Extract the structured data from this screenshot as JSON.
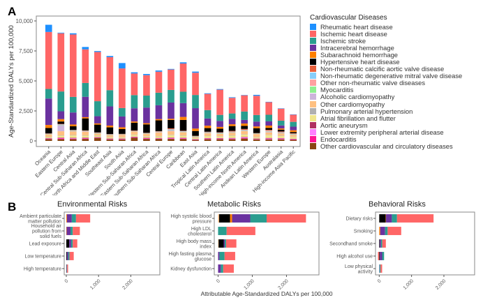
{
  "panel_labels": {
    "a": "A",
    "b": "B"
  },
  "chart_data": [
    {
      "type": "bar",
      "stacked": true,
      "panel": "A",
      "title": "",
      "xlabel": "",
      "ylabel": "Age-Standardized DALYs per 100,000",
      "ylim": [
        0,
        10000
      ],
      "yticks": [
        0,
        2500,
        5000,
        7500,
        10000
      ],
      "ytick_labels": [
        "0",
        "2,500",
        "5,000",
        "7,500",
        "10,000"
      ],
      "legend_title": "Cardiovascular Diseases",
      "legend_position": "right",
      "categories": [
        "Oceania",
        "Eastern Europe",
        "Central Asia",
        "Central Sub-Saharan Africa",
        "North Africa and Middle East",
        "Southeast Asia",
        "South Asia",
        "Western Sub-Saharan Africa",
        "Eastern Sub-Saharan Africa",
        "Southern Sub-Saharan Africa",
        "Central Europe",
        "Caribbean",
        "East Asia",
        "Tropical Latin America",
        "Central Latin America",
        "Southern Latin America",
        "High-income North America",
        "Andean Latin America",
        "Western Europe",
        "Australasia",
        "High-income Asia Pacific"
      ],
      "series": [
        {
          "name": "Other cardiovascular and circulatory diseases",
          "color": "#8B4513",
          "values": [
            150,
            150,
            150,
            170,
            260,
            130,
            130,
            270,
            170,
            170,
            170,
            170,
            90,
            140,
            140,
            140,
            200,
            130,
            130,
            130,
            90
          ]
        },
        {
          "name": "Endocarditis",
          "color": "#FF1493",
          "values": [
            30,
            60,
            40,
            40,
            20,
            20,
            20,
            30,
            40,
            30,
            30,
            40,
            20,
            30,
            30,
            30,
            30,
            30,
            30,
            30,
            20
          ]
        },
        {
          "name": "Lower extremity peripheral arterial disease",
          "color": "#FF80FF",
          "values": [
            20,
            30,
            30,
            20,
            20,
            20,
            20,
            20,
            20,
            20,
            40,
            30,
            20,
            30,
            30,
            40,
            60,
            20,
            40,
            40,
            30
          ]
        },
        {
          "name": "Aortic aneurysm",
          "color": "#B03060",
          "values": [
            30,
            40,
            40,
            40,
            30,
            30,
            30,
            30,
            30,
            30,
            40,
            30,
            30,
            40,
            40,
            40,
            40,
            20,
            50,
            40,
            40
          ]
        },
        {
          "name": "Atrial fibrillation and flutter",
          "color": "#F0E68C",
          "values": [
            100,
            150,
            200,
            170,
            100,
            100,
            80,
            150,
            100,
            130,
            200,
            170,
            90,
            160,
            120,
            190,
            200,
            100,
            230,
            180,
            160
          ]
        },
        {
          "name": "Pulmonary arterial hypertension",
          "color": "#B0B0B0",
          "values": [
            20,
            30,
            30,
            30,
            30,
            30,
            30,
            30,
            30,
            30,
            30,
            30,
            20,
            30,
            30,
            30,
            30,
            30,
            30,
            20,
            20
          ]
        },
        {
          "name": "Other cardiomyopathy",
          "color": "#FFC080",
          "values": [
            200,
            350,
            300,
            300,
            150,
            150,
            200,
            250,
            200,
            300,
            300,
            250,
            80,
            200,
            200,
            200,
            250,
            250,
            200,
            180,
            160
          ]
        },
        {
          "name": "Alcoholic cardiomyopathy",
          "color": "#CDB4DB",
          "values": [
            20,
            500,
            30,
            50,
            20,
            20,
            20,
            30,
            30,
            50,
            100,
            30,
            20,
            30,
            30,
            30,
            30,
            20,
            60,
            20,
            10
          ]
        },
        {
          "name": "Myocarditis",
          "color": "#90EE90",
          "values": [
            20,
            30,
            20,
            20,
            20,
            20,
            20,
            20,
            20,
            20,
            20,
            20,
            10,
            20,
            20,
            20,
            20,
            20,
            20,
            20,
            20
          ]
        },
        {
          "name": "Other non-rheumatic valve diseases",
          "color": "#FFA0A0",
          "values": [
            20,
            30,
            30,
            20,
            30,
            30,
            20,
            20,
            20,
            20,
            40,
            30,
            20,
            30,
            30,
            40,
            40,
            20,
            40,
            40,
            30
          ]
        },
        {
          "name": "Non-rheumatic degenerative mitral valve disease",
          "color": "#87CEFA",
          "values": [
            10,
            20,
            20,
            10,
            10,
            10,
            10,
            10,
            10,
            10,
            20,
            20,
            10,
            20,
            20,
            20,
            30,
            10,
            30,
            30,
            20
          ]
        },
        {
          "name": "Non-rheumatic calcific aortic valve disease",
          "color": "#E8603C",
          "values": [
            10,
            30,
            30,
            10,
            20,
            20,
            10,
            10,
            10,
            10,
            60,
            30,
            20,
            40,
            30,
            60,
            70,
            10,
            70,
            60,
            40
          ]
        },
        {
          "name": "Hypertensive heart disease",
          "color": "#000000",
          "values": [
            450,
            200,
            300,
            1000,
            650,
            550,
            400,
            650,
            700,
            900,
            700,
            900,
            400,
            300,
            300,
            400,
            250,
            400,
            150,
            150,
            100
          ]
        },
        {
          "name": "Subarachnoid hemorrhage",
          "color": "#FF8000",
          "values": [
            250,
            200,
            150,
            100,
            100,
            150,
            150,
            100,
            100,
            100,
            100,
            250,
            200,
            200,
            150,
            150,
            200,
            150,
            200,
            100,
            150
          ]
        },
        {
          "name": "Intracerebral hemorrhage",
          "color": "#6A329F",
          "values": [
            2200,
            650,
            1000,
            1700,
            600,
            1600,
            900,
            1100,
            1300,
            1150,
            1350,
            1150,
            1700,
            600,
            500,
            450,
            300,
            400,
            350,
            250,
            300
          ]
        },
        {
          "name": "Ischemic stroke",
          "color": "#2A9D8F",
          "values": [
            800,
            1650,
            1300,
            1150,
            1250,
            1350,
            700,
            1100,
            1000,
            1050,
            1050,
            950,
            1100,
            700,
            500,
            450,
            700,
            550,
            550,
            400,
            400
          ]
        },
        {
          "name": "Ischemic heart disease",
          "color": "#FF6666",
          "values": [
            4750,
            4850,
            5200,
            2800,
            4100,
            2750,
            3300,
            1800,
            1700,
            1750,
            1700,
            2350,
            1850,
            1350,
            2100,
            1300,
            1350,
            1600,
            1050,
            1000,
            600
          ]
        },
        {
          "name": "Rheumatic heart disease",
          "color": "#1E90FF",
          "values": [
            600,
            50,
            100,
            200,
            80,
            100,
            450,
            100,
            100,
            100,
            50,
            100,
            100,
            50,
            50,
            50,
            30,
            80,
            30,
            30,
            20
          ]
        }
      ]
    },
    {
      "type": "bar",
      "orientation": "horizontal",
      "stacked": true,
      "panel": "B",
      "title": "Environmental Risks",
      "xlabel": "",
      "xlim": [
        0,
        2900
      ],
      "xticks": [
        0,
        1000,
        2000
      ],
      "xtick_labels": [
        "0",
        "1,000",
        "2,000"
      ],
      "categories": [
        "Ambient particulate matter pollution",
        "Household air pollution from solid fuels",
        "Lead exposure",
        "Low temperature",
        "High temperature"
      ],
      "series": [
        {
          "name": "Subarachnoid hemorrhage",
          "color": "#FF8000",
          "values": [
            20,
            10,
            0,
            0,
            0
          ]
        },
        {
          "name": "Hypertensive heart disease",
          "color": "#000000",
          "values": [
            0,
            0,
            90,
            20,
            5
          ]
        },
        {
          "name": "Intracerebral hemorrhage",
          "color": "#6A329F",
          "values": [
            150,
            120,
            60,
            40,
            10
          ]
        },
        {
          "name": "Ischemic stroke",
          "color": "#2A9D8F",
          "values": [
            130,
            70,
            50,
            40,
            10
          ]
        },
        {
          "name": "Ischemic heart disease",
          "color": "#FF6666",
          "values": [
            440,
            220,
            140,
            130,
            30
          ]
        }
      ]
    },
    {
      "type": "bar",
      "orientation": "horizontal",
      "stacked": true,
      "panel": "B",
      "title": "Metabolic Risks",
      "xlabel": "Attributable Age-Standardized DALYs per 100,000",
      "xlim": [
        -50,
        2950
      ],
      "xticks": [
        0,
        1000,
        2000
      ],
      "xtick_labels": [
        "0",
        "1,000",
        "2,000"
      ],
      "categories": [
        "High systolic blood pressure",
        "High LDL cholesterol",
        "High body mass index",
        "High fasting plasma glucose",
        "Kidney dysfunction"
      ],
      "series": [
        {
          "name": "Other cardiomyopathy",
          "color": "#FFC080",
          "values": [
            30,
            0,
            15,
            0,
            0
          ]
        },
        {
          "name": "Hypertensive heart disease",
          "color": "#000000",
          "values": [
            320,
            0,
            150,
            0,
            0
          ]
        },
        {
          "name": "Subarachnoid hemorrhage",
          "color": "#FF8000",
          "values": [
            60,
            0,
            0,
            0,
            0
          ]
        },
        {
          "name": "Intracerebral hemorrhage",
          "color": "#6A329F",
          "values": [
            530,
            0,
            30,
            40,
            80
          ]
        },
        {
          "name": "Ischemic stroke",
          "color": "#2A9D8F",
          "values": [
            480,
            250,
            40,
            150,
            70
          ]
        },
        {
          "name": "Ischemic heart disease",
          "color": "#FF6666",
          "values": [
            1150,
            840,
            300,
            310,
            310
          ]
        }
      ]
    },
    {
      "type": "bar",
      "orientation": "horizontal",
      "stacked": true,
      "panel": "B",
      "title": "Behavioral Risks",
      "xlabel": "",
      "xlim": [
        -50,
        2950
      ],
      "xticks": [
        0,
        1000,
        2000
      ],
      "xtick_labels": [
        "0",
        "1,000",
        "2,000"
      ],
      "categories": [
        "Dietary risks",
        "Smoking",
        "Secondhand smoke",
        "High alcohol use",
        "Low physical activity"
      ],
      "series": [
        {
          "name": "Ischemic heart disease (negative)",
          "color": "#FF6666",
          "values": [
            0,
            0,
            0,
            -40,
            0
          ]
        },
        {
          "name": "Hypertensive heart disease",
          "color": "#000000",
          "values": [
            200,
            0,
            15,
            20,
            0
          ]
        },
        {
          "name": "Subarachnoid hemorrhage",
          "color": "#FF8000",
          "values": [
            10,
            30,
            0,
            0,
            0
          ]
        },
        {
          "name": "Intracerebral hemorrhage",
          "color": "#6A329F",
          "values": [
            180,
            150,
            40,
            70,
            10
          ]
        },
        {
          "name": "Ischemic stroke",
          "color": "#2A9D8F",
          "values": [
            160,
            80,
            40,
            60,
            30
          ]
        },
        {
          "name": "Ischemic heart disease",
          "color": "#FF6666",
          "values": [
            1130,
            420,
            110,
            0,
            50
          ]
        }
      ]
    }
  ]
}
